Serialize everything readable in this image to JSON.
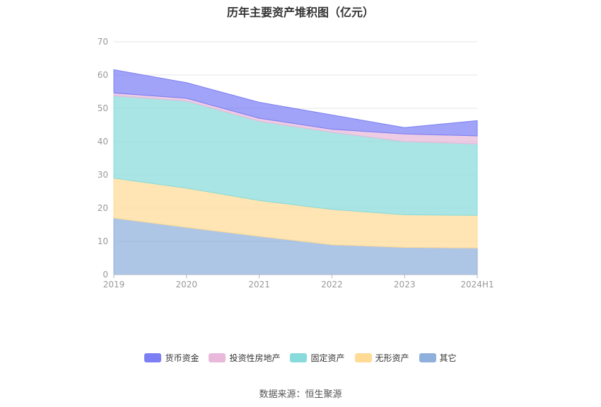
{
  "chart_data": {
    "type": "area",
    "stacked": true,
    "title": "历年主要资产堆积图（亿元）",
    "categories": [
      "2019",
      "2020",
      "2021",
      "2022",
      "2023",
      "2024H1"
    ],
    "ylim": [
      0,
      70
    ],
    "yticks": [
      0,
      10,
      20,
      30,
      40,
      50,
      60,
      70
    ],
    "grid": true,
    "legend_position": "bottom",
    "series": [
      {
        "name": "其它",
        "color": "#8fb0dd",
        "values": [
          17.0,
          14.2,
          11.5,
          9.0,
          8.2,
          8.0
        ]
      },
      {
        "name": "无形资产",
        "color": "#ffdb95",
        "values": [
          12.0,
          11.8,
          10.8,
          10.6,
          9.8,
          9.8
        ]
      },
      {
        "name": "固定资产",
        "color": "#88dbdb",
        "values": [
          24.8,
          26.2,
          23.8,
          23.2,
          22.0,
          21.5
        ]
      },
      {
        "name": "投资性房地产",
        "color": "#e8b9da",
        "values": [
          0.8,
          0.8,
          0.9,
          0.9,
          2.3,
          2.4
        ]
      },
      {
        "name": "货币资金",
        "color": "#7c7ff4",
        "values": [
          7.0,
          4.7,
          4.8,
          4.3,
          1.9,
          4.6
        ]
      }
    ],
    "legend_order": [
      "货币资金",
      "投资性房地产",
      "固定资产",
      "无形资产",
      "其它"
    ],
    "axis_color": "#b0b8c8",
    "grid_color": "#e6e6e6",
    "tick_label_color": "#999999"
  },
  "footer": {
    "source": "数据来源：恒生聚源"
  }
}
